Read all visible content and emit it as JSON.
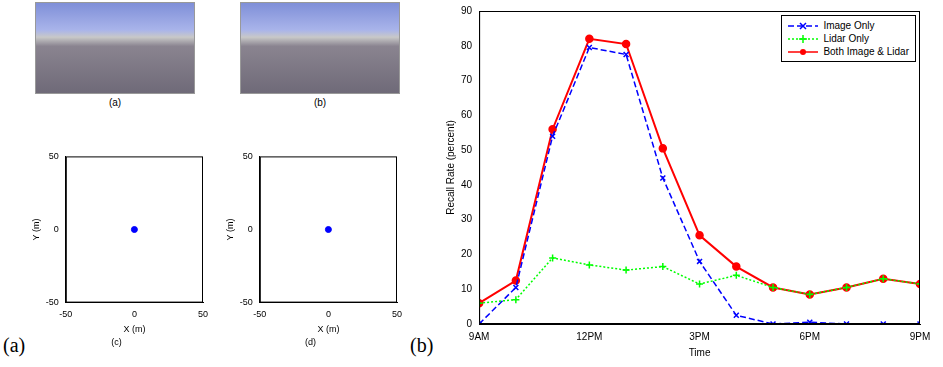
{
  "figure_labels": [
    "(a)",
    "(b)"
  ],
  "photos": [
    {
      "caption": "(a)"
    },
    {
      "caption": "(b)"
    }
  ],
  "chart_data": [
    {
      "type": "scatter",
      "title": "(c)",
      "x_label": "X (m)",
      "y_label": "Y (m)",
      "x": [
        0
      ],
      "values": [
        0
      ],
      "color": "#0000ff",
      "marker": "o",
      "xlim": [
        -50,
        50
      ],
      "ylim": [
        -50,
        50
      ],
      "xticks": [
        -50,
        0,
        50
      ],
      "yticks": [
        -50,
        0,
        50
      ],
      "grid": false
    },
    {
      "type": "scatter",
      "title": "(d)",
      "x_label": "X (m)",
      "y_label": "Y (m)",
      "x": [
        0
      ],
      "values": [
        0
      ],
      "color": "#0000ff",
      "marker": "o",
      "xlim": [
        -50,
        50
      ],
      "ylim": [
        -50,
        50
      ],
      "xticks": [
        -50,
        0,
        50
      ],
      "yticks": [
        -50,
        0,
        50
      ],
      "grid": false
    },
    {
      "type": "line",
      "x_label": "Time",
      "y_label": "Recall Rate (percent)",
      "x": [
        9,
        10,
        11,
        12,
        13,
        14,
        15,
        16,
        17,
        18,
        19,
        20,
        21
      ],
      "xlim": [
        9,
        21
      ],
      "xticks": [
        {
          "value": 9,
          "label": "9AM"
        },
        {
          "value": 12,
          "label": "12PM"
        },
        {
          "value": 15,
          "label": "3PM"
        },
        {
          "value": 18,
          "label": "6PM"
        },
        {
          "value": 21,
          "label": "9PM"
        }
      ],
      "ylim": [
        0,
        90
      ],
      "yticks": [
        0,
        10,
        20,
        30,
        40,
        50,
        60,
        70,
        80,
        90
      ],
      "grid": false,
      "legend": "upper right",
      "series": [
        {
          "name": "Image Only",
          "color": "#0000ff",
          "marker": "x",
          "line_style": "dashed",
          "values": [
            0,
            10.5,
            54,
            79.5,
            77.5,
            42,
            18,
            2.5,
            0,
            0.5,
            0,
            0,
            0
          ]
        },
        {
          "name": "Lidar Only",
          "color": "#00ff00",
          "marker": "+",
          "line_style": "dotted",
          "values": [
            6,
            7,
            19,
            17,
            15.5,
            16.5,
            11.5,
            14,
            10.5,
            8.5,
            10.5,
            13,
            11.5
          ]
        },
        {
          "name": "Both Image & Lidar",
          "color": "#ff0000",
          "marker": "o",
          "line_style": "solid",
          "values": [
            6,
            12.5,
            56,
            82,
            80.5,
            50.5,
            25.5,
            16.5,
            10.5,
            8.5,
            10.5,
            13,
            11.5
          ]
        }
      ]
    }
  ]
}
